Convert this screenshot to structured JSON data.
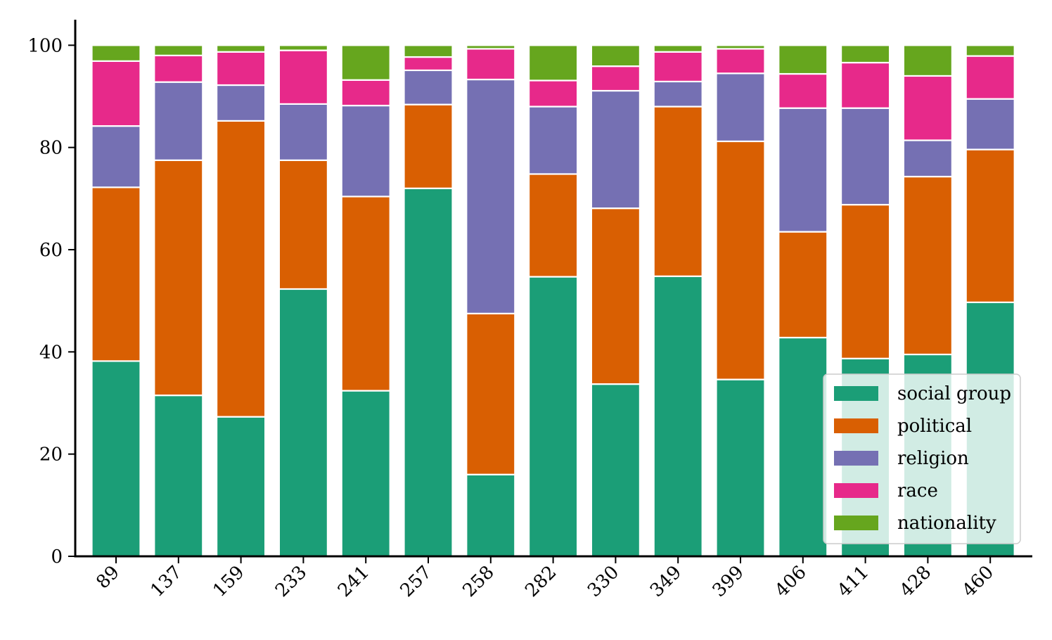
{
  "chart_data": {
    "type": "bar",
    "stacked": true,
    "title": "",
    "xlabel": "",
    "ylabel": "",
    "ylim": [
      0,
      105
    ],
    "yticks": [
      0,
      20,
      40,
      60,
      80,
      100
    ],
    "grid": false,
    "legend_position": "bottom-right",
    "categories": [
      "89",
      "137",
      "159",
      "233",
      "241",
      "257",
      "258",
      "282",
      "330",
      "349",
      "399",
      "406",
      "411",
      "428",
      "460"
    ],
    "series": [
      {
        "name": "social group",
        "color": "#1b9e77",
        "values": [
          38.2,
          31.5,
          27.3,
          52.3,
          32.4,
          72.0,
          16.0,
          54.7,
          33.7,
          54.8,
          34.6,
          42.8,
          38.7,
          39.5,
          49.7
        ]
      },
      {
        "name": "political",
        "color": "#d95f02",
        "values": [
          34.0,
          46.0,
          57.9,
          25.2,
          38.0,
          16.4,
          31.5,
          20.1,
          34.4,
          33.2,
          46.6,
          20.7,
          30.1,
          34.8,
          29.9
        ]
      },
      {
        "name": "religion",
        "color": "#7570b3",
        "values": [
          12.0,
          15.3,
          7.0,
          11.0,
          17.8,
          6.7,
          45.8,
          13.2,
          23.0,
          4.9,
          13.3,
          24.2,
          18.9,
          7.1,
          9.9
        ]
      },
      {
        "name": "race",
        "color": "#e7298a",
        "values": [
          12.7,
          5.2,
          6.5,
          10.5,
          5.0,
          2.6,
          6.0,
          5.1,
          4.8,
          5.8,
          4.8,
          6.7,
          8.9,
          12.6,
          8.4
        ]
      },
      {
        "name": "nationality",
        "color": "#66a61e",
        "values": [
          3.1,
          2.0,
          1.3,
          1.0,
          6.8,
          2.3,
          0.7,
          6.9,
          4.1,
          1.3,
          0.7,
          5.6,
          3.4,
          6.0,
          2.1
        ]
      }
    ]
  }
}
